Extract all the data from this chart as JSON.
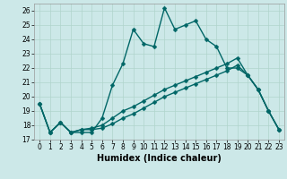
{
  "xlabel": "Humidex (Indice chaleur)",
  "bg_color": "#cce8e8",
  "line_color": "#006666",
  "xlim": [
    -0.5,
    23.5
  ],
  "ylim": [
    17,
    26.5
  ],
  "yticks": [
    17,
    18,
    19,
    20,
    21,
    22,
    23,
    24,
    25,
    26
  ],
  "xticks": [
    0,
    1,
    2,
    3,
    4,
    5,
    6,
    7,
    8,
    9,
    10,
    11,
    12,
    13,
    14,
    15,
    16,
    17,
    18,
    19,
    20,
    21,
    22,
    23
  ],
  "line1_x": [
    0,
    1,
    2,
    3,
    4,
    5,
    6,
    7,
    8,
    9,
    10,
    11,
    12,
    13,
    14,
    15,
    16,
    17,
    18,
    19,
    20,
    21,
    22,
    23
  ],
  "line1_y": [
    19.5,
    17.5,
    18.2,
    17.5,
    17.5,
    17.5,
    18.5,
    20.8,
    22.3,
    24.7,
    23.7,
    23.5,
    26.2,
    24.7,
    25.0,
    25.3,
    24.0,
    23.5,
    22.0,
    22.0,
    21.5,
    20.5,
    19.0,
    17.7
  ],
  "line2_x": [
    0,
    1,
    2,
    3,
    4,
    5,
    6,
    7,
    8,
    9,
    10,
    11,
    12,
    13,
    14,
    15,
    16,
    17,
    18,
    19,
    20,
    21,
    22,
    23
  ],
  "line2_y": [
    19.5,
    17.5,
    18.2,
    17.5,
    17.7,
    17.8,
    18.0,
    18.5,
    19.0,
    19.3,
    19.7,
    20.1,
    20.5,
    20.8,
    21.1,
    21.4,
    21.7,
    22.0,
    22.3,
    22.7,
    21.5,
    20.5,
    19.0,
    17.7
  ],
  "line3_x": [
    0,
    1,
    2,
    3,
    4,
    5,
    6,
    7,
    8,
    9,
    10,
    11,
    12,
    13,
    14,
    15,
    16,
    17,
    18,
    19,
    20,
    21,
    22,
    23
  ],
  "line3_y": [
    19.5,
    17.5,
    18.2,
    17.5,
    17.7,
    17.7,
    17.8,
    18.1,
    18.5,
    18.8,
    19.2,
    19.6,
    20.0,
    20.3,
    20.6,
    20.9,
    21.2,
    21.5,
    21.8,
    22.2,
    21.5,
    20.5,
    19.0,
    17.7
  ],
  "grid_color": "#b0d4cc",
  "markersize": 2.5,
  "linewidth": 1.0,
  "xlabel_fontsize": 7,
  "tick_fontsize": 5.5
}
